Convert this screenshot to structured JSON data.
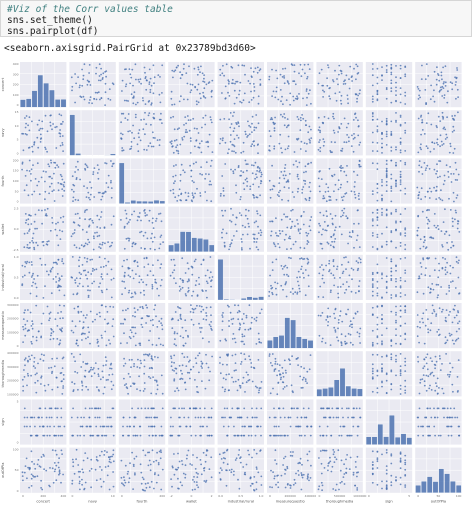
{
  "notebook": {
    "code_lines": [
      "#Viz of the Corr values table",
      "sns.set_theme()",
      "sns.pairplot(df)"
    ],
    "output_text": "<seaborn.axisgrid.PairGrid at 0x23789bd3d60>"
  },
  "chart_data": {
    "type": "scatter",
    "kind": "pairplot",
    "variables": [
      "concert",
      "navy",
      "fourth",
      "wallet",
      "industrial/rural",
      "measurequestio",
      "thoroughmedia",
      "sign",
      "outOfPla"
    ],
    "grid": true,
    "diagonal": "histogram",
    "marker_color": "#4c72b0",
    "background_color": "#eaeaf2",
    "y_tick_labels": [
      [
        "400",
        "300",
        "200",
        "100",
        "0"
      ],
      [
        "15",
        "10",
        "5",
        "0"
      ],
      [
        "200",
        "150",
        "100",
        "50",
        "0"
      ],
      [
        "2.5",
        "0.0",
        "-2.5"
      ],
      [
        "1.0",
        "0.5",
        "0.0"
      ],
      [
        "300000",
        "200000",
        "100000",
        "0"
      ],
      [
        "400000",
        "300000",
        "200000",
        "100000"
      ],
      [
        "5",
        "0"
      ],
      [
        "100",
        "50",
        "0"
      ]
    ],
    "x_tick_labels": [
      [
        "0",
        "200",
        "400"
      ],
      [
        "0",
        "10"
      ],
      [
        "0",
        "200"
      ],
      [
        "-2",
        "0",
        "2"
      ],
      [
        "0.0",
        "0.5",
        "1.0"
      ],
      [
        "0",
        "200000",
        "400000"
      ],
      [
        "0",
        "500000",
        "1000000"
      ],
      [
        "0",
        "5"
      ],
      [
        "0",
        "50",
        "100"
      ]
    ]
  }
}
